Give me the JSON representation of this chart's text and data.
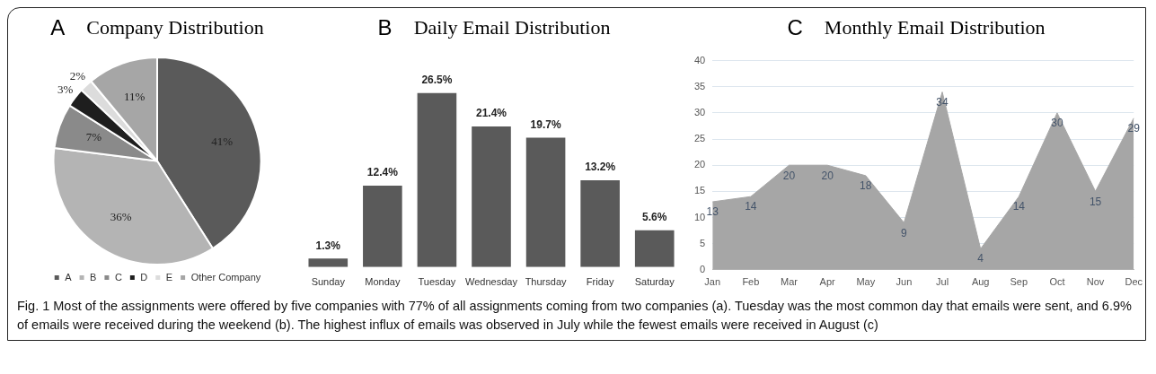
{
  "chart_data": [
    {
      "type": "pie",
      "title": "Company Distribution",
      "annotations": [
        "A",
        "Fig. 1 Most of the assignments were offered by five companies with 77% of all assignments coming from two companies (a). Tuesday was the most common day that emails were sent, and 6.9% of emails were received during the weekend (b). The highest influx of emails was observed in July while the fewest emails were received in August (c)"
      ],
      "categories": [
        "A",
        "B",
        "C",
        "D",
        "E",
        "Other Company"
      ],
      "values": [
        41,
        36,
        7,
        3,
        2,
        11
      ],
      "value_labels": [
        "41%",
        "36%",
        "7%",
        "3%",
        "2%",
        "11%"
      ],
      "colors": [
        "#5a5a5a",
        "#b4b4b4",
        "#8a8a8a",
        "#1e1e1e",
        "#dcdcdc",
        "#a6a6a6"
      ],
      "legend": "bottom"
    },
    {
      "type": "bar",
      "title": "Daily Email Distribution",
      "annotations": [
        "B"
      ],
      "categories": [
        "Sunday",
        "Monday",
        "Tuesday",
        "Wednesday",
        "Thursday",
        "Friday",
        "Saturday"
      ],
      "values": [
        1.3,
        12.4,
        26.5,
        21.4,
        19.7,
        13.2,
        5.6
      ],
      "value_labels": [
        "1.3%",
        "12.4%",
        "26.5%",
        "21.4%",
        "19.7%",
        "13.2%",
        "5.6%"
      ],
      "color": "#5a5a5a",
      "grid": false,
      "legend": false
    },
    {
      "type": "area",
      "title": "Monthly Email Distribution",
      "annotations": [
        "C"
      ],
      "categories": [
        "Jan",
        "Feb",
        "Mar",
        "Apr",
        "May",
        "Jun",
        "Jul",
        "Aug",
        "Sep",
        "Oct",
        "Nov",
        "Dec"
      ],
      "values": [
        13,
        14,
        20,
        20,
        18,
        9,
        34,
        4,
        14,
        30,
        15,
        29
      ],
      "color": "#a6a6a6",
      "ylim": [
        0,
        40
      ],
      "yticks": [
        0,
        5,
        10,
        15,
        20,
        25,
        30,
        35,
        40
      ],
      "grid": "y",
      "data_labels": true,
      "legend": false
    }
  ]
}
